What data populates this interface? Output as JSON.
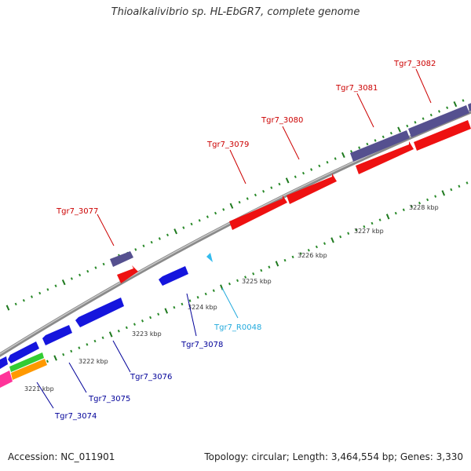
{
  "title": "Thioalkalivibrio sp. HL-EbGR7, complete genome",
  "accession": "Accession: NC_011901",
  "summary": "Topology: circular; Length: 3,464,554 bp; Genes: 3,330",
  "colors": {
    "backbone": "#888888",
    "cds_forward": "#ee1111",
    "cds_reverse": "#1515dd",
    "cog_forward": "#55508f",
    "rna": "#33bbee",
    "tick_minor": "#228822",
    "label_forward": "#cc0000",
    "label_reverse": "#000099",
    "label_rna": "#22aadd"
  },
  "scale_labels": [
    "3221 kbp",
    "3222 kbp",
    "3223 kbp",
    "3224 kbp",
    "3225 kbp",
    "3226 kbp",
    "3227 kbp",
    "3228 kbp"
  ],
  "genes": [
    {
      "id": "Tgr7_3074",
      "strand": "reverse"
    },
    {
      "id": "Tgr7_3075",
      "strand": "reverse"
    },
    {
      "id": "Tgr7_3076",
      "strand": "reverse"
    },
    {
      "id": "Tgr7_3077",
      "strand": "forward"
    },
    {
      "id": "Tgr7_3078",
      "strand": "reverse"
    },
    {
      "id": "Tgr7_R0048",
      "strand": "rna"
    },
    {
      "id": "Tgr7_3079",
      "strand": "forward"
    },
    {
      "id": "Tgr7_3080",
      "strand": "forward"
    },
    {
      "id": "Tgr7_3081",
      "strand": "forward"
    },
    {
      "id": "Tgr7_3082",
      "strand": "forward"
    }
  ]
}
